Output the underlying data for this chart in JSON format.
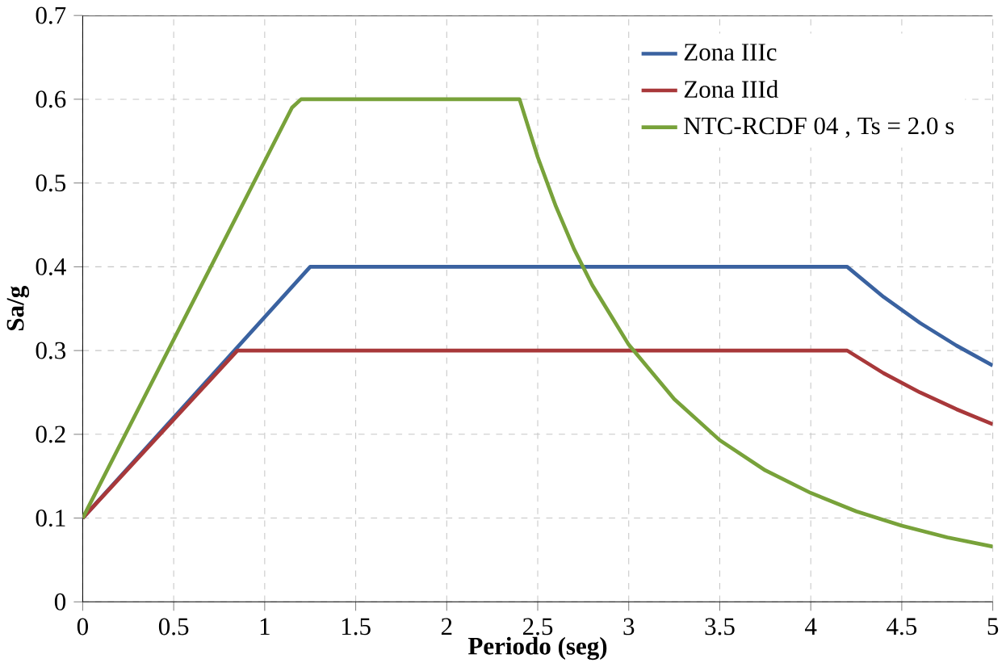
{
  "chart_data": {
    "type": "line",
    "xlabel": "Periodo (seg)",
    "ylabel": "Sa/g",
    "xlim": [
      0,
      5
    ],
    "ylim": [
      0,
      0.7
    ],
    "xticks": [
      0,
      0.5,
      1,
      1.5,
      2,
      2.5,
      3,
      3.5,
      4,
      4.5,
      5
    ],
    "yticks": [
      0,
      0.1,
      0.2,
      0.3,
      0.4,
      0.5,
      0.6,
      0.7
    ],
    "grid": true,
    "legend": "top right",
    "marker": "none",
    "line_style": "solid",
    "series": [
      {
        "name": "Zona IIIc",
        "color": "#3a62a0",
        "x": [
          0,
          1.25,
          4.2,
          4.4,
          4.6,
          4.8,
          5
        ],
        "values": [
          0.1,
          0.4,
          0.4,
          0.364,
          0.333,
          0.306,
          0.282
        ]
      },
      {
        "name": "Zona IIId",
        "color": "#a8383a",
        "x": [
          0,
          0.85,
          4.2,
          4.4,
          4.6,
          4.8,
          5
        ],
        "values": [
          0.1,
          0.3,
          0.3,
          0.273,
          0.25,
          0.23,
          0.212
        ]
      },
      {
        "name": "NTC-RCDF 04 , Ts = 2.0 s",
        "color": "#78a23a",
        "x": [
          0,
          1.15,
          1.2,
          2.4,
          2.5,
          2.6,
          2.7,
          2.8,
          3.0,
          3.25,
          3.5,
          3.75,
          4.0,
          4.25,
          4.5,
          4.75,
          5
        ],
        "values": [
          0.1,
          0.59,
          0.6,
          0.6,
          0.531,
          0.472,
          0.421,
          0.378,
          0.307,
          0.242,
          0.193,
          0.157,
          0.13,
          0.108,
          0.091,
          0.077,
          0.066
        ]
      }
    ]
  }
}
